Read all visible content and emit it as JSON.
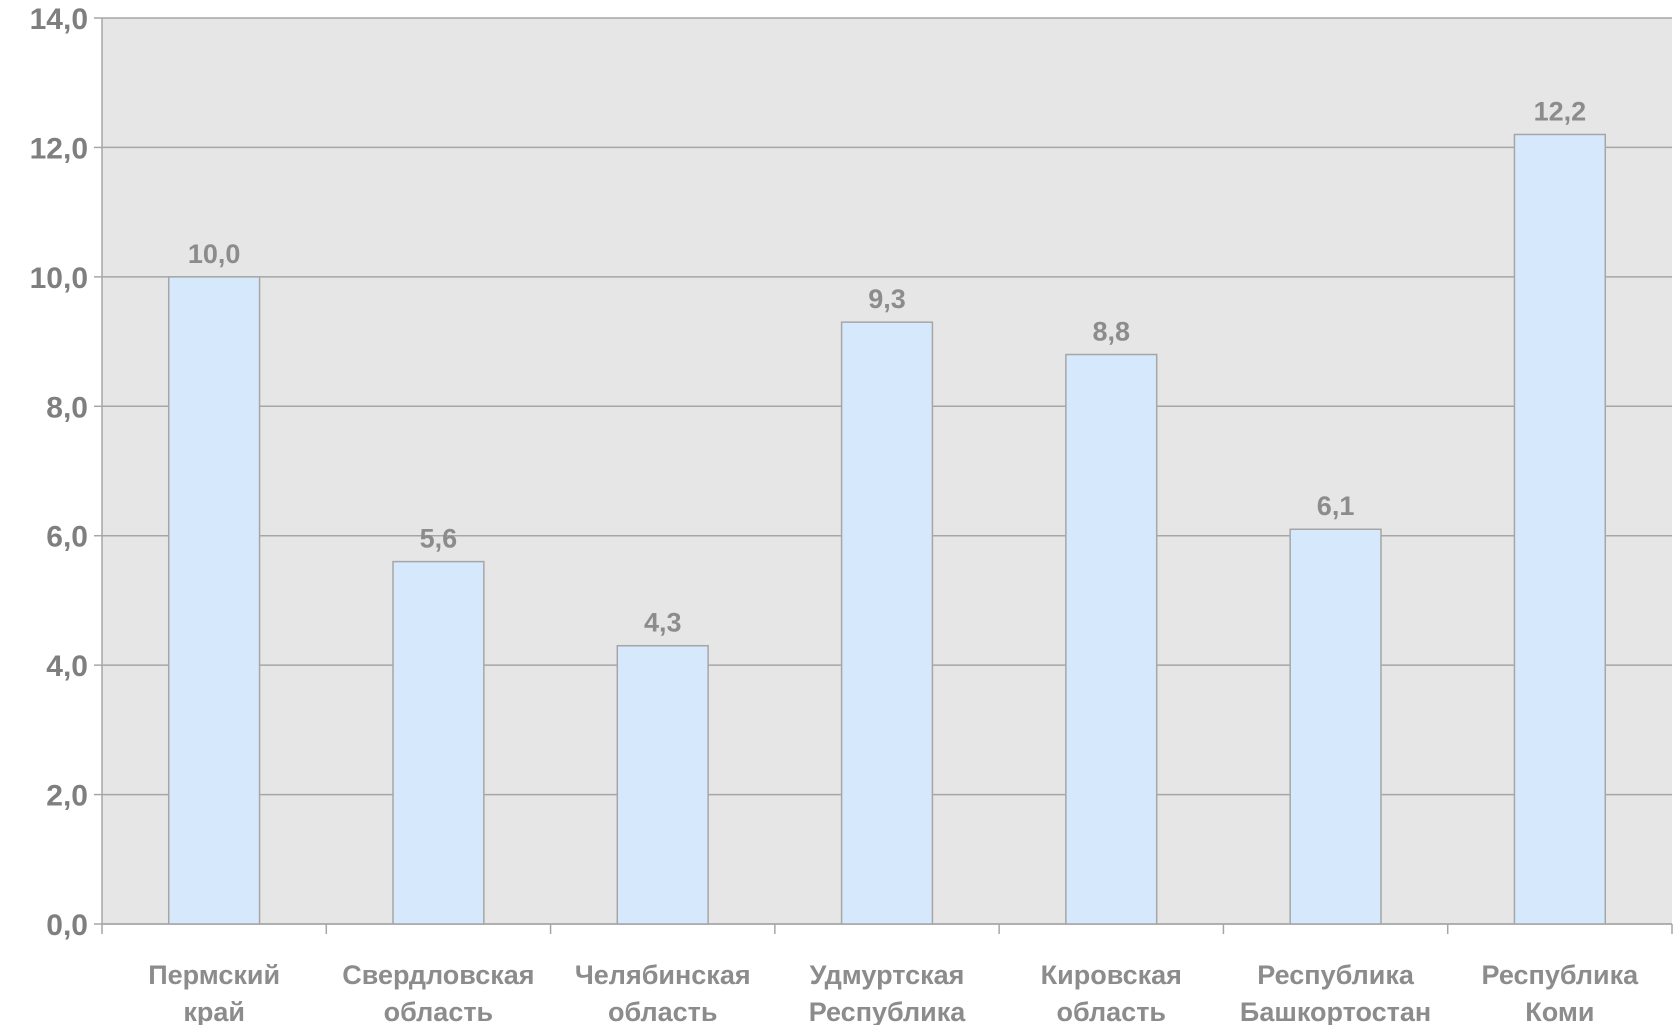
{
  "chart_data": {
    "type": "bar",
    "title": "",
    "xlabel": "",
    "ylabel": "",
    "categories": [
      [
        "Пермский",
        "край"
      ],
      [
        "Свердловская",
        "область"
      ],
      [
        "Челябинская",
        "область"
      ],
      [
        "Удмуртская",
        "Республика"
      ],
      [
        "Кировская",
        "область"
      ],
      [
        "Республика",
        "Башкортостан"
      ],
      [
        "Республика",
        "Коми"
      ]
    ],
    "values": [
      10.0,
      5.6,
      4.3,
      9.3,
      8.8,
      6.1,
      12.2
    ],
    "value_labels": [
      "10,0",
      "5,6",
      "4,3",
      "9,3",
      "8,8",
      "6,1",
      "12,2"
    ],
    "ylim": [
      0,
      14
    ],
    "yticks": [
      0,
      2,
      4,
      6,
      8,
      10,
      12,
      14
    ],
    "ytick_labels": [
      "0,0",
      "2,0",
      "4,0",
      "6,0",
      "8,0",
      "10,0",
      "12,0",
      "14,0"
    ],
    "grid": true,
    "legend": "none",
    "colors": {
      "plot_background": "#e6e6e6",
      "bar_fill": "#d6e8fc",
      "bar_stroke": "#a6a6a6",
      "gridline": "#a6a6a6",
      "axis": "#a6a6a6"
    }
  }
}
